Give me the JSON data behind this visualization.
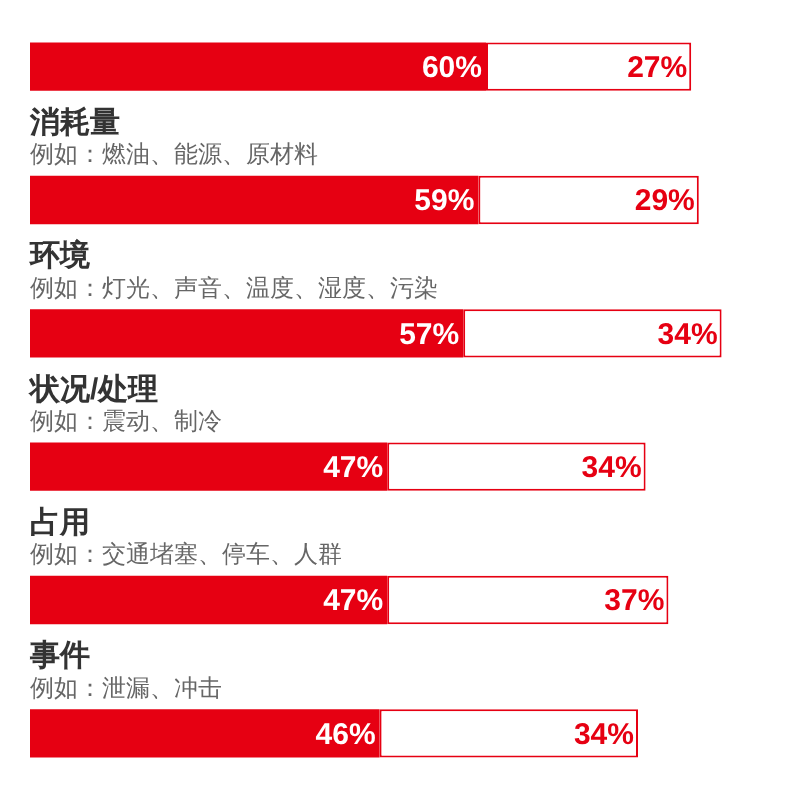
{
  "chart_data": {
    "type": "bar",
    "orientation": "horizontal",
    "stacked": true,
    "categories": [
      null,
      "消耗量",
      "环境",
      "状况/处理",
      "占用",
      "事件"
    ],
    "annotations": [
      "例如：燃油、能源、原材料",
      "例如：灯光、声音、温度、湿度、污染",
      "例如：震动、制冷",
      "例如：交通堵塞、停车、人群",
      "例如：泄漏、冲击"
    ],
    "series": [
      {
        "color": "#e60012",
        "values": [
          60,
          59,
          57,
          47,
          47,
          46
        ],
        "value_labels": [
          "60%",
          "59%",
          "57%",
          "47%",
          "47%",
          "46%"
        ]
      },
      {
        "color": "#ffffff",
        "values": [
          27,
          29,
          34,
          34,
          37,
          34
        ],
        "value_labels": [
          "27%",
          "29%",
          "34%",
          "34%",
          "37%",
          "34%"
        ]
      }
    ]
  }
}
